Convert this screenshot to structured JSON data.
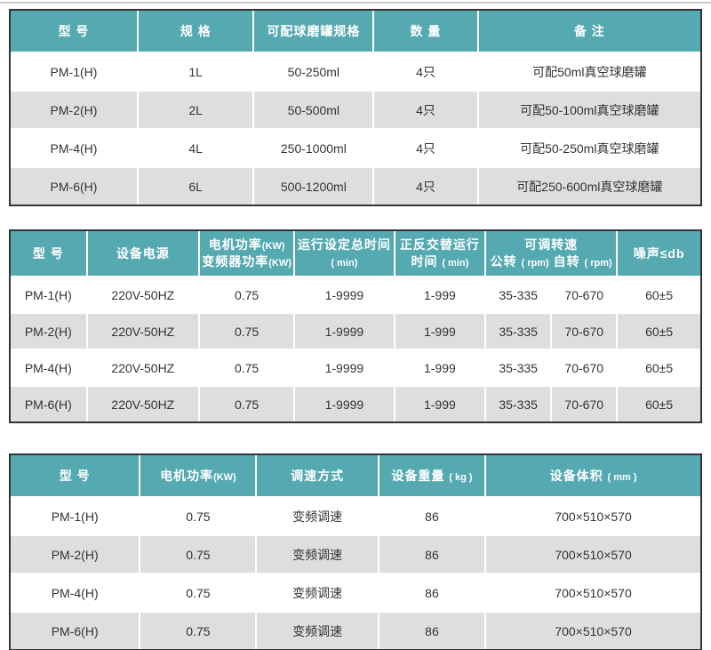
{
  "page": {
    "background": "#ffffff",
    "top_rule_color": "#cccccc"
  },
  "colors": {
    "header_bg": "#55a9b1",
    "header_text": "#ffffff",
    "stripe_bg": "#dedede",
    "row_bg": "#ffffff",
    "body_text": "#333333",
    "table_border": "#333333",
    "cell_divider": "#ffffff"
  },
  "tables": [
    {
      "name": "jar-configuration-table",
      "col_widths": [
        "18.3%",
        "16.8%",
        "17.4%",
        "15.1%",
        "32.4%"
      ],
      "columns": [
        {
          "lines": [
            [
              {
                "t": "型 号"
              }
            ]
          ]
        },
        {
          "lines": [
            [
              {
                "t": "规 格"
              }
            ]
          ]
        },
        {
          "lines": [
            [
              {
                "t": "可配球磨罐规格"
              }
            ]
          ]
        },
        {
          "lines": [
            [
              {
                "t": "数 量"
              }
            ]
          ]
        },
        {
          "lines": [
            [
              {
                "t": "备  注"
              }
            ]
          ]
        }
      ],
      "rows": [
        [
          "PM-1(H)",
          "1L",
          "50-250ml",
          "4只",
          "可配50ml真空球磨罐"
        ],
        [
          "PM-2(H)",
          "2L",
          "50-500ml",
          "4只",
          "可配50-100ml真空球磨罐"
        ],
        [
          "PM-4(H)",
          "4L",
          "250-1000ml",
          "4只",
          "可配50-250ml真空球磨罐"
        ],
        [
          "PM-6(H)",
          "6L",
          "500-1200ml",
          "4只",
          "可配250-600ml真空球磨罐"
        ]
      ]
    },
    {
      "name": "electrical-operation-table",
      "col_widths": [
        "10.9%",
        "16.3%",
        "13.8%",
        "14.5%",
        "13.2%",
        "9.55%",
        "9.55%",
        "12.2%"
      ],
      "columns": [
        {
          "lines": [
            [
              {
                "t": "型 号"
              }
            ]
          ]
        },
        {
          "lines": [
            [
              {
                "t": "设备电源"
              }
            ]
          ]
        },
        {
          "lines": [
            [
              {
                "t": "电机功率"
              },
              {
                "t": "(KW)",
                "s": true
              }
            ],
            [
              {
                "t": "变频器功率"
              },
              {
                "t": "(KW)",
                "s": true
              }
            ]
          ]
        },
        {
          "lines": [
            [
              {
                "t": "运行设定总时间"
              }
            ],
            [
              {
                "t": "( min)",
                "s": true
              }
            ]
          ]
        },
        {
          "lines": [
            [
              {
                "t": "正反交替运行"
              }
            ],
            [
              {
                "t": "时间 "
              },
              {
                "t": "( min)",
                "s": true
              }
            ]
          ]
        },
        {
          "span": 2,
          "lines": [
            [
              {
                "t": "可调转速"
              }
            ],
            [
              {
                "t": "公转 "
              },
              {
                "t": "( rpm)",
                "s": true
              },
              {
                "t": " 自转 "
              },
              {
                "t": "( rpm)",
                "s": true
              }
            ]
          ]
        },
        {
          "lines": [
            [
              {
                "t": "噪声≤db"
              }
            ]
          ]
        }
      ],
      "rows": [
        [
          "PM-1(H)",
          "220V-50HZ",
          "0.75",
          "1-9999",
          "1-999",
          "35-335",
          "70-670",
          "60±5"
        ],
        [
          "PM-2(H)",
          "220V-50HZ",
          "0.75",
          "1-9999",
          "1-999",
          "35-335",
          "70-670",
          "60±5"
        ],
        [
          "PM-4(H)",
          "220V-50HZ",
          "0.75",
          "1-9999",
          "1-999",
          "35-335",
          "70-670",
          "60±5"
        ],
        [
          "PM-6(H)",
          "220V-50HZ",
          "0.75",
          "1-9999",
          "1-999",
          "35-335",
          "70-670",
          "60±5"
        ]
      ]
    },
    {
      "name": "physical-spec-table",
      "col_widths": [
        "18.6%",
        "16.9%",
        "17.7%",
        "15.5%",
        "31.3%"
      ],
      "columns": [
        {
          "lines": [
            [
              {
                "t": "型 号"
              }
            ]
          ]
        },
        {
          "lines": [
            [
              {
                "t": "电机功率"
              },
              {
                "t": "(KW)",
                "s": true
              }
            ]
          ]
        },
        {
          "lines": [
            [
              {
                "t": "调速方式"
              }
            ]
          ]
        },
        {
          "lines": [
            [
              {
                "t": "设备重量 "
              },
              {
                "t": "( kg )",
                "s": true
              }
            ]
          ]
        },
        {
          "lines": [
            [
              {
                "t": "设备体积 "
              },
              {
                "t": "( mm )",
                "s": true
              }
            ]
          ]
        }
      ],
      "rows": [
        [
          "PM-1(H)",
          "0.75",
          "变频调速",
          "86",
          "700×510×570"
        ],
        [
          "PM-2(H)",
          "0.75",
          "变频调速",
          "86",
          "700×510×570"
        ],
        [
          "PM-4(H)",
          "0.75",
          "变频调速",
          "86",
          "700×510×570"
        ],
        [
          "PM-6(H)",
          "0.75",
          "变频调速",
          "86",
          "700×510×570"
        ]
      ]
    }
  ]
}
